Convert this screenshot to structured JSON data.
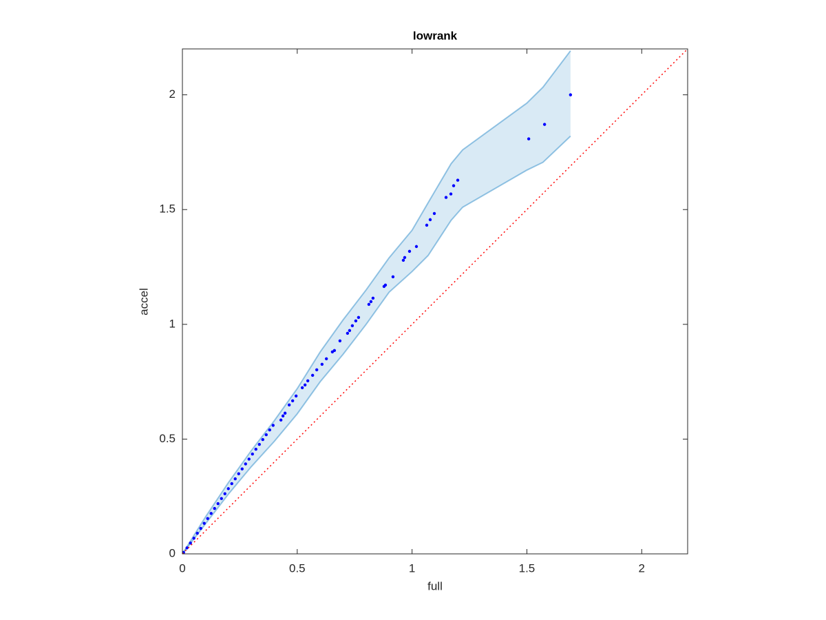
{
  "chart_data": {
    "type": "scatter",
    "title": "lowrank",
    "xlabel": "full",
    "ylabel": "accel",
    "xlim": [
      0,
      2.2
    ],
    "ylim": [
      0,
      2.2
    ],
    "xticks": [
      0,
      0.5,
      1,
      1.5,
      2
    ],
    "yticks": [
      0,
      0.5,
      1,
      1.5,
      2
    ],
    "series": [
      {
        "type": "band",
        "color": "#0072bd",
        "x": [
          0,
          0.1,
          0.2,
          0.3,
          0.4,
          0.5,
          0.6,
          0.7,
          0.8,
          0.9,
          1.0,
          1.07,
          1.17,
          1.22,
          1.5,
          1.57,
          1.69
        ],
        "upper": [
          0,
          0.16,
          0.31,
          0.45,
          0.58,
          0.72,
          0.88,
          1.02,
          1.15,
          1.29,
          1.41,
          1.53,
          1.7,
          1.76,
          1.964,
          2.033,
          2.192
        ],
        "lower": [
          0,
          0.13,
          0.26,
          0.38,
          0.49,
          0.61,
          0.75,
          0.87,
          1.0,
          1.14,
          1.23,
          1.3,
          1.453,
          1.51,
          1.672,
          1.706,
          1.82
        ]
      },
      {
        "type": "points",
        "color": "#0000ff",
        "x": [
          0.005,
          0.02,
          0.035,
          0.05,
          0.065,
          0.08,
          0.095,
          0.11,
          0.125,
          0.14,
          0.155,
          0.17,
          0.185,
          0.2,
          0.215,
          0.23,
          0.245,
          0.26,
          0.275,
          0.29,
          0.305,
          0.32,
          0.335,
          0.35,
          0.365,
          0.38,
          0.395,
          0.429,
          0.438,
          0.447,
          0.465,
          0.48,
          0.495,
          0.522,
          0.534,
          0.546,
          0.567,
          0.585,
          0.608,
          0.627,
          0.653,
          0.662,
          0.686,
          0.719,
          0.728,
          0.74,
          0.755,
          0.767,
          0.812,
          0.821,
          0.83,
          0.878,
          0.884,
          0.917,
          0.962,
          0.968,
          0.989,
          1.019,
          1.064,
          1.079,
          1.097,
          1.148,
          1.169,
          1.181,
          1.199,
          1.508,
          1.577,
          1.69
        ],
        "values": [
          0.006,
          0.026,
          0.047,
          0.068,
          0.09,
          0.111,
          0.133,
          0.154,
          0.176,
          0.198,
          0.219,
          0.241,
          0.262,
          0.284,
          0.306,
          0.327,
          0.349,
          0.37,
          0.392,
          0.413,
          0.435,
          0.456,
          0.477,
          0.498,
          0.519,
          0.54,
          0.56,
          0.583,
          0.601,
          0.613,
          0.649,
          0.667,
          0.688,
          0.724,
          0.736,
          0.754,
          0.778,
          0.802,
          0.826,
          0.85,
          0.88,
          0.886,
          0.928,
          0.961,
          0.973,
          0.994,
          1.015,
          1.03,
          1.087,
          1.099,
          1.114,
          1.165,
          1.171,
          1.207,
          1.279,
          1.291,
          1.318,
          1.339,
          1.432,
          1.456,
          1.483,
          1.553,
          1.568,
          1.604,
          1.628,
          1.808,
          1.871,
          2.0
        ]
      },
      {
        "type": "line",
        "color": "#ff0000",
        "dash": "dotted",
        "x": [
          0,
          2.2
        ],
        "values": [
          0,
          2.2
        ]
      }
    ]
  }
}
